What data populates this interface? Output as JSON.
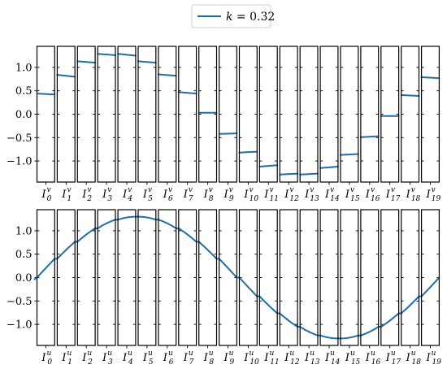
{
  "chart_data": {
    "type": "line",
    "legend": {
      "placement": "top-center",
      "entries": [
        {
          "series": "k",
          "var": "k",
          "rest": " = 0.32",
          "color": "#1f6fa5"
        }
      ]
    },
    "subplots": [
      {
        "id": "top",
        "panel_labels": [
          {
            "base": "I",
            "sup": "v",
            "sub": "0"
          },
          {
            "base": "I",
            "sup": "v",
            "sub": "1"
          },
          {
            "base": "I",
            "sup": "v",
            "sub": "2"
          },
          {
            "base": "I",
            "sup": "v",
            "sub": "3"
          },
          {
            "base": "I",
            "sup": "v",
            "sub": "4"
          },
          {
            "base": "I",
            "sup": "v",
            "sub": "5"
          },
          {
            "base": "I",
            "sup": "v",
            "sub": "6"
          },
          {
            "base": "I",
            "sup": "v",
            "sub": "7"
          },
          {
            "base": "I",
            "sup": "v",
            "sub": "8"
          },
          {
            "base": "I",
            "sup": "v",
            "sub": "9"
          },
          {
            "base": "I",
            "sup": "v",
            "sub": "10"
          },
          {
            "base": "I",
            "sup": "v",
            "sub": "11"
          },
          {
            "base": "I",
            "sup": "v",
            "sub": "12"
          },
          {
            "base": "I",
            "sup": "v",
            "sub": "13"
          },
          {
            "base": "I",
            "sup": "v",
            "sub": "14"
          },
          {
            "base": "I",
            "sup": "v",
            "sub": "15"
          },
          {
            "base": "I",
            "sup": "v",
            "sub": "16"
          },
          {
            "base": "I",
            "sup": "v",
            "sub": "17"
          },
          {
            "base": "I",
            "sup": "v",
            "sub": "18"
          },
          {
            "base": "I",
            "sup": "v",
            "sub": "19"
          }
        ],
        "yticks": [
          1.0,
          0.5,
          0.0,
          -0.5,
          -1.0
        ],
        "ytick_labels": [
          "1.0",
          "0.5",
          "0.0",
          "−0.5",
          "−1.0"
        ],
        "ylim": [
          -1.45,
          1.45
        ],
        "segments": [
          [
            0.44,
            0.42
          ],
          [
            0.84,
            0.8
          ],
          [
            1.13,
            1.1
          ],
          [
            1.29,
            1.26
          ],
          [
            1.29,
            1.25
          ],
          [
            1.13,
            1.1
          ],
          [
            0.85,
            0.82
          ],
          [
            0.47,
            0.44
          ],
          [
            0.03,
            0.03
          ],
          [
            -0.42,
            -0.41
          ],
          [
            -0.82,
            -0.8
          ],
          [
            -1.12,
            -1.09
          ],
          [
            -1.29,
            -1.27
          ],
          [
            -1.29,
            -1.27
          ],
          [
            -1.15,
            -1.12
          ],
          [
            -0.87,
            -0.85
          ],
          [
            -0.49,
            -0.47
          ],
          [
            -0.04,
            -0.04
          ],
          [
            0.41,
            0.39
          ],
          [
            0.79,
            0.77
          ]
        ]
      },
      {
        "id": "bottom",
        "panel_labels": [
          {
            "base": "I",
            "sup": "u",
            "sub": "0"
          },
          {
            "base": "I",
            "sup": "u",
            "sub": "1"
          },
          {
            "base": "I",
            "sup": "u",
            "sub": "2"
          },
          {
            "base": "I",
            "sup": "u",
            "sub": "3"
          },
          {
            "base": "I",
            "sup": "u",
            "sub": "4"
          },
          {
            "base": "I",
            "sup": "u",
            "sub": "5"
          },
          {
            "base": "I",
            "sup": "u",
            "sub": "6"
          },
          {
            "base": "I",
            "sup": "u",
            "sub": "7"
          },
          {
            "base": "I",
            "sup": "u",
            "sub": "8"
          },
          {
            "base": "I",
            "sup": "u",
            "sub": "9"
          },
          {
            "base": "I",
            "sup": "u",
            "sub": "10"
          },
          {
            "base": "I",
            "sup": "u",
            "sub": "11"
          },
          {
            "base": "I",
            "sup": "u",
            "sub": "12"
          },
          {
            "base": "I",
            "sup": "u",
            "sub": "13"
          },
          {
            "base": "I",
            "sup": "u",
            "sub": "14"
          },
          {
            "base": "I",
            "sup": "u",
            "sub": "15"
          },
          {
            "base": "I",
            "sup": "u",
            "sub": "16"
          },
          {
            "base": "I",
            "sup": "u",
            "sub": "17"
          },
          {
            "base": "I",
            "sup": "u",
            "sub": "18"
          },
          {
            "base": "I",
            "sup": "u",
            "sub": "19"
          }
        ],
        "yticks": [
          1.0,
          0.5,
          0.0,
          -0.5,
          -1.0
        ],
        "ytick_labels": [
          "1.0",
          "0.5",
          "0.0",
          "−0.5",
          "−1.0"
        ],
        "ylim": [
          -1.45,
          1.45
        ],
        "curve": {
          "form": "A*sin(2*pi*x/P)",
          "amplitude": 1.3,
          "period": 20,
          "x_range": [
            0,
            20
          ]
        }
      }
    ]
  }
}
